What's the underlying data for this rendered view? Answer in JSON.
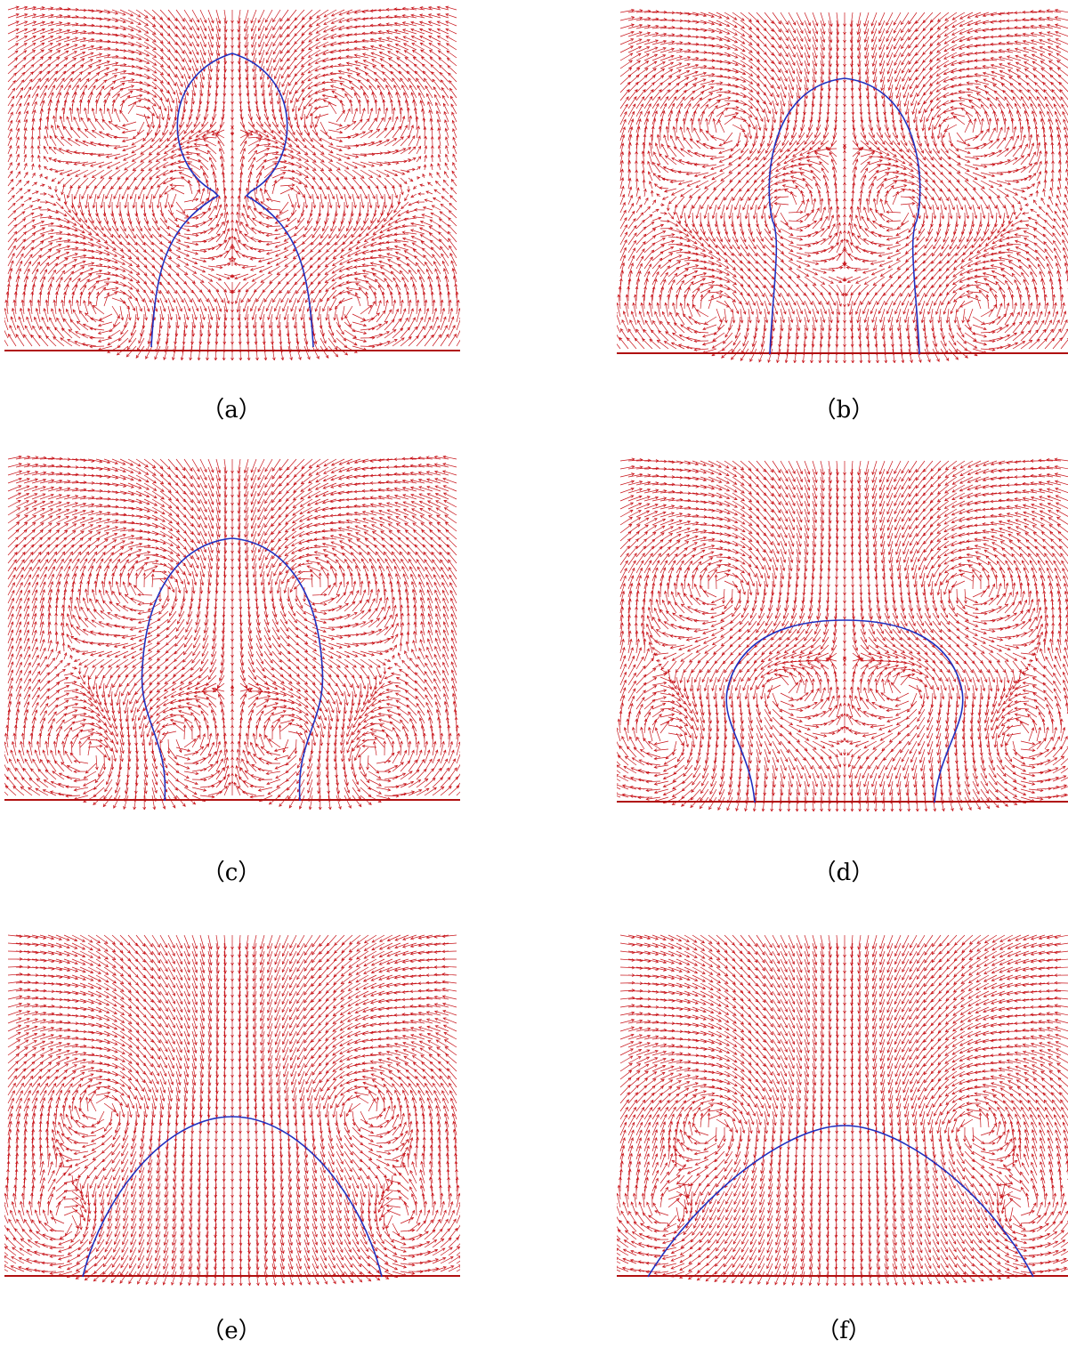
{
  "panels": [
    {
      "label": "（a）"
    },
    {
      "label": "（b）"
    },
    {
      "label": "（c）"
    },
    {
      "label": "（d）"
    },
    {
      "label": "（e）"
    },
    {
      "label": "（f）"
    }
  ]
}
